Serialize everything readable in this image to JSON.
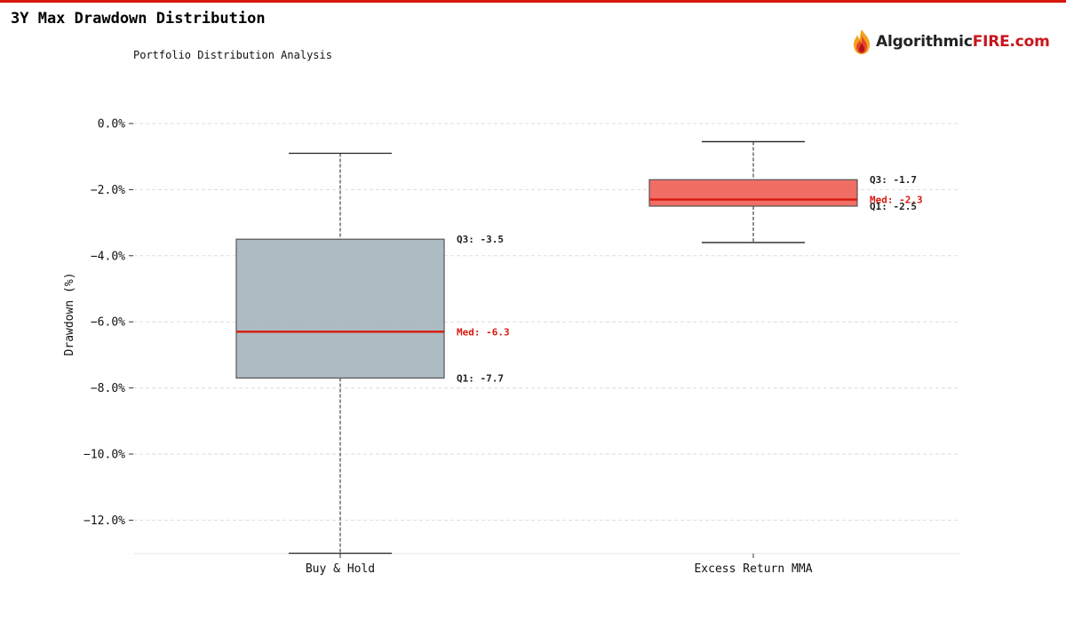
{
  "header": {
    "title": "3Y Max Drawdown Distribution",
    "subtitle": "Portfolio Distribution Analysis"
  },
  "logo": {
    "text_dark": "Algorithmic",
    "text_accent": "FIRE.com",
    "icon": "flame-icon"
  },
  "colors": {
    "accent": "#d7190f",
    "box_buy_hold": "#9fb0b8",
    "box_mma": "#ee4a3e",
    "median": "#d7190f",
    "grid": "#dddddd"
  },
  "chart_data": {
    "type": "box",
    "title": "3Y Max Drawdown Distribution",
    "subtitle": "Portfolio Distribution Analysis",
    "xlabel": "",
    "ylabel": "Drawdown (%)",
    "ylim": [
      -13.0,
      0.6
    ],
    "yticks": [
      0,
      -2,
      -4,
      -6,
      -8,
      -10,
      -12
    ],
    "ytick_labels": [
      "0.0%",
      "−2.0%",
      "−4.0%",
      "−6.0%",
      "−8.0%",
      "−10.0%",
      "−12.0%"
    ],
    "grid": true,
    "categories": [
      "Buy & Hold",
      "Excess Return MMA"
    ],
    "series": [
      {
        "whisker_high": -0.9,
        "q3": -3.5,
        "median": -6.3,
        "q1": -7.7,
        "whisker_low": -13.0,
        "q3_label": "Q3: -3.5",
        "median_label": "Med: -6.3",
        "q1_label": "Q1: -7.7",
        "color": "#9fb0b8"
      },
      {
        "whisker_high": -0.55,
        "q3": -1.7,
        "median": -2.3,
        "q1": -2.5,
        "whisker_low": -3.6,
        "q3_label": "Q3: -1.7",
        "median_label": "Med: -2.3",
        "q1_label": "Q1: -2.5",
        "color": "#ee4a3e"
      }
    ]
  }
}
